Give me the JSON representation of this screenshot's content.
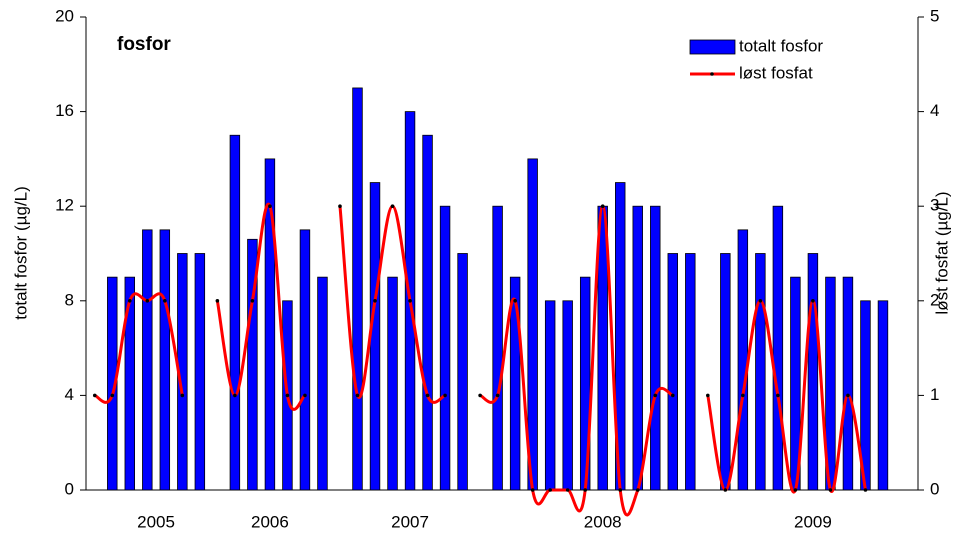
{
  "chart_data": {
    "type": "bar-line",
    "title": "fosfor",
    "y_label": "totalt fosfor (µg/L)",
    "y2_label": "løst fosfat (µg/L)",
    "x": [
      0,
      1,
      2,
      3,
      4,
      5,
      6,
      7,
      8,
      9,
      10,
      11,
      12,
      13,
      14,
      15,
      16,
      17,
      18,
      19,
      20,
      21,
      22,
      23,
      24,
      25,
      26,
      27,
      28,
      29,
      30,
      31,
      32,
      33,
      34,
      35,
      36,
      37,
      38,
      39,
      40,
      41,
      42,
      43,
      44,
      45
    ],
    "xlim": [
      -0.5,
      47
    ],
    "xticks": [
      {
        "value": 3.5,
        "label": "2005"
      },
      {
        "value": 10,
        "label": "2006"
      },
      {
        "value": 18,
        "label": "2007"
      },
      {
        "value": 29,
        "label": "2008"
      },
      {
        "value": 41,
        "label": "2009"
      }
    ],
    "ylim": [
      0,
      20
    ],
    "yticks": [
      0,
      4,
      8,
      12,
      16,
      20
    ],
    "y2lim": [
      0,
      5
    ],
    "y2ticks": [
      0,
      1,
      2,
      3,
      4,
      5
    ],
    "legend": "upper right",
    "series": [
      {
        "name": "totalt fosfor",
        "type": "bar",
        "color": "#0000ff",
        "values": [
          null,
          9,
          9,
          11,
          11,
          10,
          10,
          null,
          15,
          10.6,
          14,
          8,
          11,
          9,
          null,
          17,
          13,
          9,
          16,
          15,
          12,
          10,
          null,
          12,
          9,
          14,
          8,
          8,
          9,
          12,
          13,
          12,
          12,
          10,
          10,
          null,
          10,
          11,
          10,
          12,
          9,
          10,
          9,
          9,
          8,
          8
        ]
      },
      {
        "name": "løst fosfat",
        "type": "line",
        "axis": "y2",
        "color": "#ff0000",
        "values": [
          1,
          1,
          2,
          2,
          2,
          1,
          null,
          2,
          1,
          2,
          3,
          1,
          1,
          null,
          3,
          1,
          2,
          3,
          2,
          1,
          1,
          null,
          1,
          1,
          2,
          0,
          0,
          0,
          0,
          3,
          0,
          0,
          1,
          1,
          null,
          1,
          0,
          1,
          2,
          1,
          0,
          2,
          0,
          1,
          0,
          null
        ]
      }
    ]
  }
}
